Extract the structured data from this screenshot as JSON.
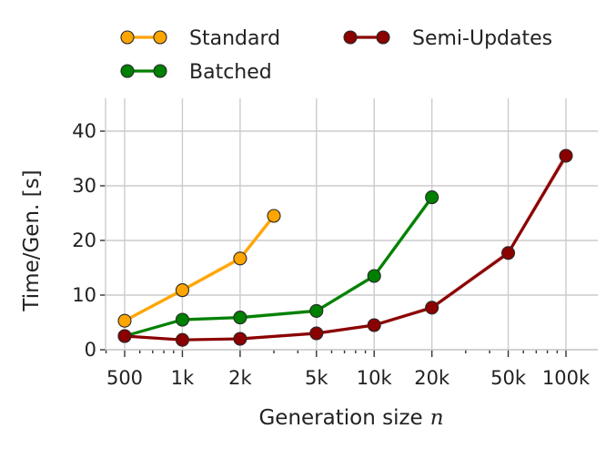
{
  "chart_data": {
    "type": "line",
    "xscale": "log",
    "xlim": [
      400,
      140000
    ],
    "ylim": [
      0,
      45
    ],
    "xlabel": "Generation size",
    "xlabel_var": "n",
    "ylabel": "Time/Gen. [s]",
    "grid": true,
    "legend_position": "top",
    "x_ticks": [
      {
        "value": 500,
        "label": "500"
      },
      {
        "value": 1000,
        "label": "1k"
      },
      {
        "value": 2000,
        "label": "2k"
      },
      {
        "value": 5000,
        "label": "5k"
      },
      {
        "value": 10000,
        "label": "10k"
      },
      {
        "value": 20000,
        "label": "20k"
      },
      {
        "value": 50000,
        "label": "50k"
      },
      {
        "value": 100000,
        "label": "100k"
      }
    ],
    "y_ticks": [
      {
        "value": 0,
        "label": "0"
      },
      {
        "value": 10,
        "label": "10"
      },
      {
        "value": 20,
        "label": "20"
      },
      {
        "value": 30,
        "label": "30"
      },
      {
        "value": 40,
        "label": "40"
      }
    ],
    "series": [
      {
        "name": "Standard",
        "color": "#FFA500",
        "x": [
          500,
          1000,
          2000,
          3000
        ],
        "y": [
          5.3,
          10.9,
          16.7,
          24.5
        ]
      },
      {
        "name": "Batched",
        "color": "#008000",
        "x": [
          500,
          1000,
          2000,
          5000,
          10000,
          20000
        ],
        "y": [
          2.5,
          5.5,
          5.9,
          7.1,
          13.5,
          27.9
        ]
      },
      {
        "name": "Semi-Updates",
        "color": "#8B0000",
        "x": [
          500,
          1000,
          2000,
          5000,
          10000,
          20000,
          50000,
          100000
        ],
        "y": [
          2.5,
          1.8,
          2.0,
          3.0,
          4.5,
          7.7,
          17.7,
          35.5
        ]
      }
    ]
  }
}
